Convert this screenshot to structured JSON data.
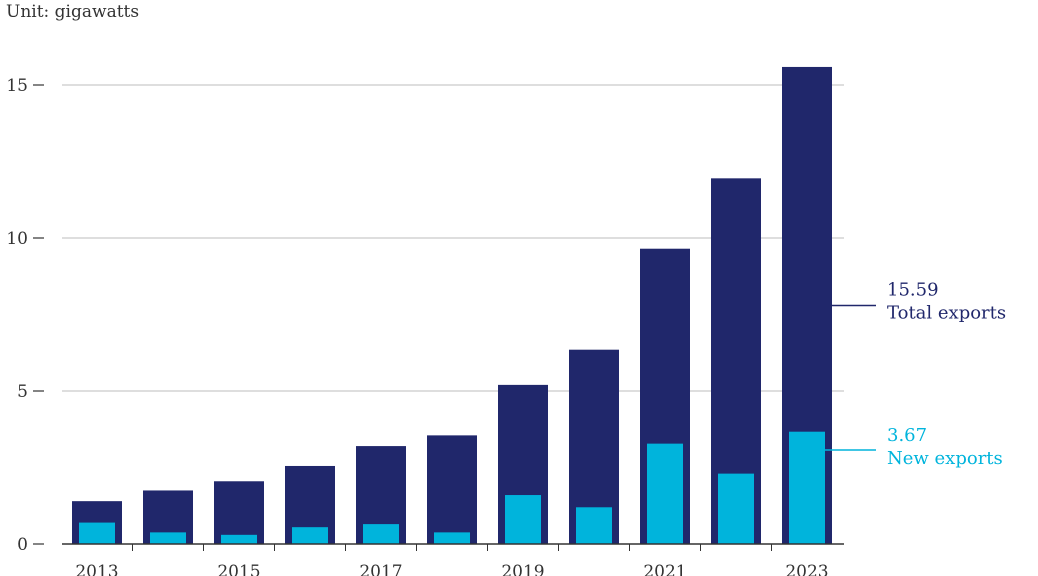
{
  "unit_label": "Unit: gigawatts",
  "colors": {
    "total": "#20276b",
    "new": "#00b4dc",
    "grid": "#bdbdbd",
    "axis": "#333333"
  },
  "chart_data": {
    "type": "bar",
    "title": "",
    "xlabel": "",
    "ylabel": "",
    "ylim": [
      0,
      16
    ],
    "yticks": [
      0,
      5,
      10,
      15
    ],
    "x_tick_labels": [
      "2013",
      "2015",
      "2017",
      "2019",
      "2021",
      "2023"
    ],
    "categories": [
      "2013",
      "2014",
      "2015",
      "2016",
      "2017",
      "2018",
      "2019",
      "2020",
      "2021",
      "2022",
      "2023"
    ],
    "series": [
      {
        "name": "Total exports",
        "values": [
          1.4,
          1.75,
          2.05,
          2.55,
          3.2,
          3.55,
          5.2,
          6.35,
          9.65,
          11.95,
          15.59
        ]
      },
      {
        "name": "New exports",
        "values": [
          0.7,
          0.38,
          0.3,
          0.55,
          0.65,
          0.38,
          1.6,
          1.2,
          3.28,
          2.3,
          3.67
        ]
      }
    ],
    "annotations": [
      {
        "value": "15.59",
        "label": "Total exports",
        "series": "Total exports"
      },
      {
        "value": "3.67",
        "label": "New exports",
        "series": "New exports"
      }
    ],
    "grid": true
  }
}
